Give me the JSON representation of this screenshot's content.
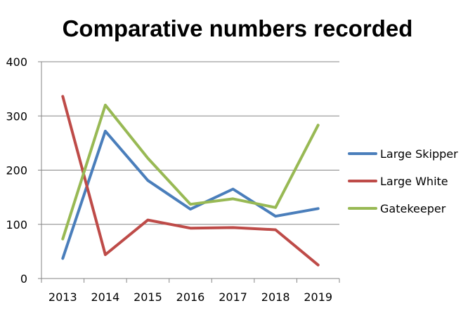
{
  "chart_data": {
    "type": "line",
    "title": "Comparative numbers recorded",
    "xlabel": "",
    "ylabel": "",
    "x": [
      "2013",
      "2014",
      "2015",
      "2016",
      "2017",
      "2018",
      "2019"
    ],
    "ylim": [
      0,
      400
    ],
    "yticks": [
      "0",
      "100",
      "200",
      "300",
      "400"
    ],
    "grid": true,
    "legend": "right",
    "series": [
      {
        "name": "Large Skipper",
        "color": "#4A7EBB",
        "values": [
          37,
          272,
          181,
          128,
          165,
          115,
          129
        ]
      },
      {
        "name": "Large White",
        "color": "#BE4B48",
        "values": [
          336,
          44,
          108,
          93,
          94,
          90,
          25
        ]
      },
      {
        "name": "Gatekeeper",
        "color": "#98B954",
        "values": [
          73,
          320,
          222,
          137,
          147,
          131,
          283
        ]
      }
    ]
  }
}
